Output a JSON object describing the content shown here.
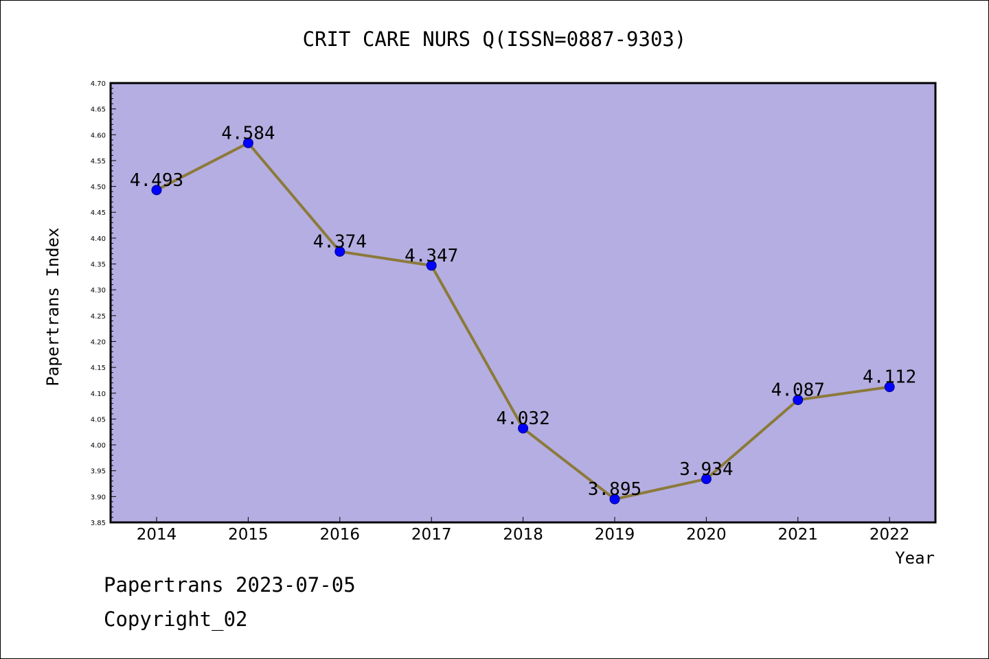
{
  "chart_data": {
    "type": "line",
    "title": "CRIT CARE NURS Q(ISSN=0887-9303)",
    "xlabel": "Year",
    "ylabel": "Papertrans Index",
    "categories": [
      "2014",
      "2015",
      "2016",
      "2017",
      "2018",
      "2019",
      "2020",
      "2021",
      "2022"
    ],
    "series": [
      {
        "values": [
          4.493,
          4.584,
          4.374,
          4.347,
          4.032,
          3.895,
          3.934,
          4.087,
          4.112
        ],
        "labels": [
          "4.493",
          "4.584",
          "4.374",
          "4.347",
          "4.032",
          "3.895",
          "3.934",
          "4.087",
          "4.112"
        ]
      }
    ],
    "ylim": [
      3.85,
      4.7
    ],
    "yticks": [
      "3.85",
      "3.90",
      "3.95",
      "4.00",
      "4.05",
      "4.10",
      "4.15",
      "4.20",
      "4.25",
      "4.30",
      "4.35",
      "4.40",
      "4.45",
      "4.50",
      "4.55",
      "4.60",
      "4.65",
      "4.70"
    ],
    "grid": false,
    "legend": "none",
    "colors": {
      "plot_background": "#b5aee2",
      "line": "#8b7a3a",
      "marker": "#0000ff",
      "marker_edge": "#00008b",
      "axis": "#000000"
    }
  },
  "footer": {
    "date_text": "Papertrans 2023-07-05",
    "copyright_text": "Copyright_02"
  }
}
